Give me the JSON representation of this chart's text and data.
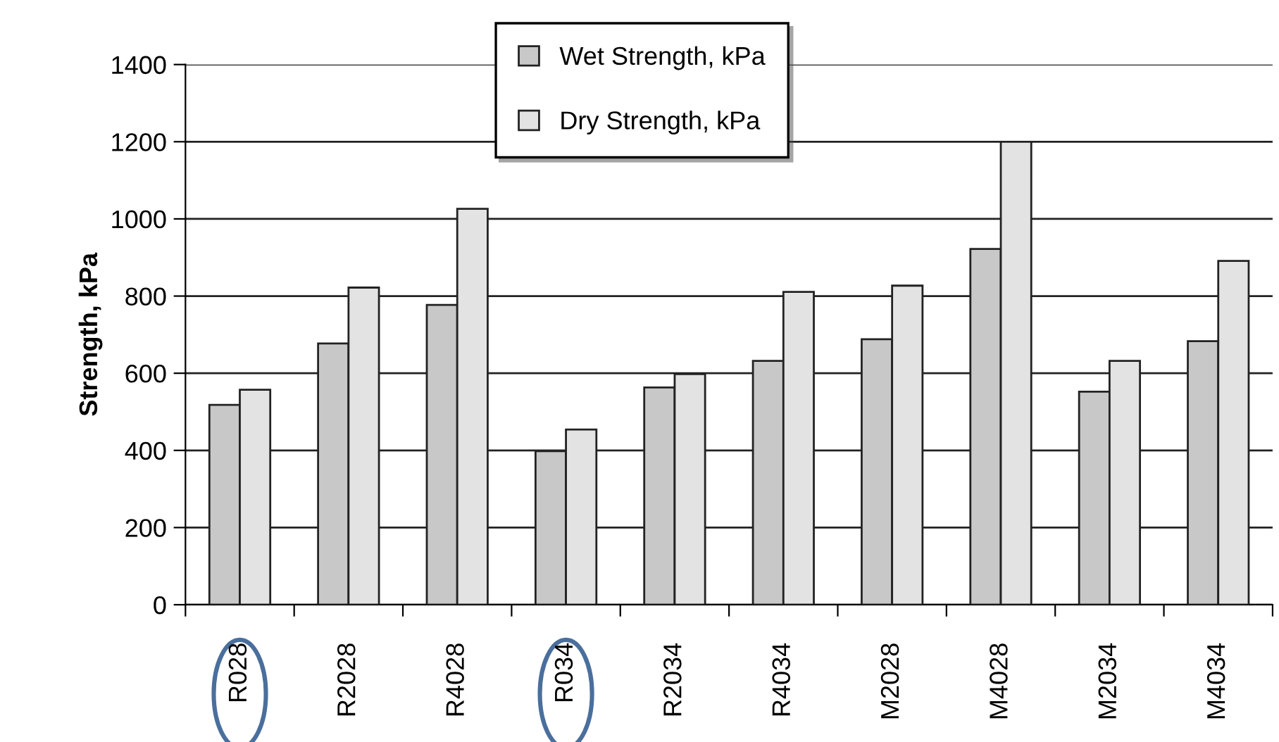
{
  "chart_data": {
    "type": "bar",
    "ylabel": "Strength, kPa",
    "categories": [
      "R028",
      "R2028",
      "R4028",
      "R034",
      "R2034",
      "R4034",
      "M2028",
      "M4028",
      "M2034",
      "M4034"
    ],
    "series": [
      {
        "name": "Wet Strength, kPa",
        "color": "#c8c8c8",
        "values": [
          518,
          677,
          777,
          398,
          563,
          632,
          688,
          922,
          552,
          683
        ]
      },
      {
        "name": "Dry Strength, kPa",
        "color": "#e3e3e3",
        "values": [
          557,
          822,
          1026,
          454,
          598,
          811,
          827,
          1200,
          632,
          891
        ]
      }
    ],
    "ylim": [
      0,
      1400
    ],
    "yticks": [
      0,
      200,
      400,
      600,
      800,
      1000,
      1200,
      1400
    ],
    "grid": "y",
    "legend": "top"
  }
}
